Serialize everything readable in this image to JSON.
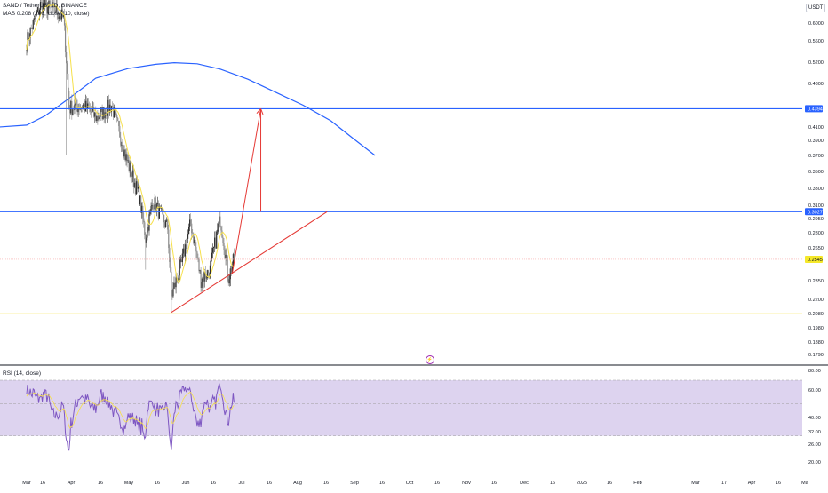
{
  "chart_data": {
    "type": "candlestick",
    "header": {
      "symbol_line": "SAND / TetherUS, 1D, BINANCE",
      "ma_line": "MAS 0.208 (200, close, 10, close)",
      "currency": "USDT"
    },
    "price_axis": {
      "ticks": [
        "0.6000",
        "0.5600",
        "0.5200",
        "0.4800",
        "0.4100",
        "0.3900",
        "0.3700",
        "0.3500",
        "0.3300",
        "0.3100",
        "0.2950",
        "0.2800",
        "0.2650",
        "0.2350",
        "0.2200",
        "0.2080",
        "0.1980",
        "0.1880",
        "0.1790"
      ],
      "tick_values": [
        0.6,
        0.56,
        0.52,
        0.48,
        0.41,
        0.39,
        0.37,
        0.35,
        0.33,
        0.31,
        0.295,
        0.28,
        0.265,
        0.235,
        0.22,
        0.208,
        0.198,
        0.188,
        0.179
      ],
      "labels": [
        {
          "text": "0.4394",
          "value": 0.4394,
          "color": "#2962ff",
          "text_color": "#ffffff"
        },
        {
          "text": "0.3027",
          "value": 0.3027,
          "color": "#2962ff",
          "text_color": "#ffffff"
        },
        {
          "text": "0.2545",
          "value": 0.2545,
          "color": "#f5e82a",
          "text_color": "#131722"
        }
      ]
    },
    "time_axis": [
      "Mar",
      "16",
      "Apr",
      "16",
      "May",
      "16",
      "Jun",
      "16",
      "Jul",
      "16",
      "Aug",
      "16",
      "Sep",
      "16",
      "Oct",
      "16",
      "Nov",
      "16",
      "Dec",
      "16",
      "2025",
      "16",
      "Feb",
      "Mar",
      "17",
      "Apr",
      "16",
      "Ma"
    ],
    "horizontal_levels": [
      {
        "value": 0.4394,
        "color": "#2962ff"
      },
      {
        "value": 0.3027,
        "color": "#2962ff"
      }
    ],
    "price_line": {
      "value": 0.2545,
      "color": "#f7a9a8"
    },
    "support_trendline": {
      "from": {
        "date": "2024-08-05",
        "price": 0.209
      },
      "to": {
        "date": "2025-01-21",
        "price": 0.3027
      },
      "color": "#e53935"
    },
    "projection_arrow": {
      "from": {
        "date": "2024-10-10",
        "price": 0.2415
      },
      "to": {
        "date": "2024-11-10",
        "price": 0.4394
      },
      "color": "#e53935"
    },
    "target_measure": {
      "date": "2024-11-10",
      "from_price": 0.3027,
      "to_price": 0.4394,
      "color": "#e53935"
    },
    "ohlc_series": {
      "name": "SAND/USDT",
      "approx_close_by_period": [
        {
          "date": "2024-03-01",
          "close": 0.56
        },
        {
          "date": "2024-03-16",
          "close": 0.64
        },
        {
          "date": "2024-04-01",
          "close": 0.63
        },
        {
          "date": "2024-04-10",
          "close": 0.61
        },
        {
          "date": "2024-04-16",
          "close": 0.44
        },
        {
          "date": "2024-05-01",
          "close": 0.445
        },
        {
          "date": "2024-05-16",
          "close": 0.425
        },
        {
          "date": "2024-06-01",
          "close": 0.445
        },
        {
          "date": "2024-06-16",
          "close": 0.37
        },
        {
          "date": "2024-07-01",
          "close": 0.32
        },
        {
          "date": "2024-07-08",
          "close": 0.275
        },
        {
          "date": "2024-07-16",
          "close": 0.315
        },
        {
          "date": "2024-08-01",
          "close": 0.285
        },
        {
          "date": "2024-08-05",
          "close": 0.222
        },
        {
          "date": "2024-08-16",
          "close": 0.25
        },
        {
          "date": "2024-08-26",
          "close": 0.29
        },
        {
          "date": "2024-09-06",
          "close": 0.236
        },
        {
          "date": "2024-09-16",
          "close": 0.245
        },
        {
          "date": "2024-09-27",
          "close": 0.295
        },
        {
          "date": "2024-10-06",
          "close": 0.238
        },
        {
          "date": "2024-10-12",
          "close": 0.2545
        }
      ]
    },
    "ma_series": [
      {
        "label": "MA 10",
        "color": "#f6e04b"
      },
      {
        "label": "MA 200",
        "color": "#2962ff"
      }
    ],
    "rsi_panel": {
      "legend": "RSI (14, close)",
      "ticks": [
        "80.00",
        "60.00",
        "40.00",
        "32.00",
        "26.00",
        "20.00"
      ],
      "tick_values": [
        80,
        60,
        40,
        32,
        26,
        20
      ],
      "band_upper": 70,
      "band_lower": 30,
      "mid": 50,
      "colors": {
        "rsi": "#7e57c2",
        "signal": "#f6e04b",
        "band": "#d1c4e9"
      }
    },
    "grid": false
  }
}
